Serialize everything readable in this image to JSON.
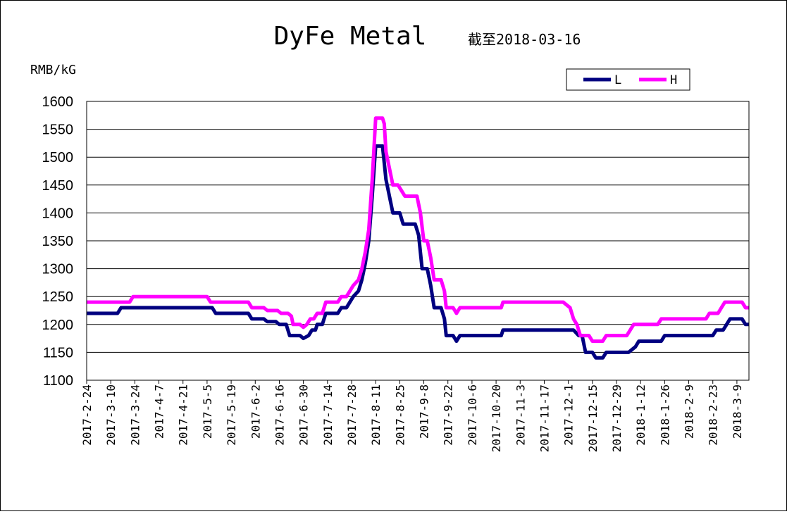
{
  "chart_data": {
    "type": "line",
    "title": "DyFe Metal",
    "subtitle": "截至2018-03-16",
    "ylabel": "RMB/kG",
    "xlabel": "",
    "ylim": [
      1100,
      1600
    ],
    "yticks": [
      1100,
      1150,
      1200,
      1250,
      1300,
      1350,
      1400,
      1450,
      1500,
      1550,
      1600
    ],
    "grid": "horizontal",
    "legend_position": "top-right",
    "x_start": "2017-02-24",
    "x_end": "2018-03-16",
    "xticks": [
      "2017-2-24",
      "2017-3-10",
      "2017-3-24",
      "2017-4-7",
      "2017-4-21",
      "2017-5-5",
      "2017-5-19",
      "2017-6-2",
      "2017-6-16",
      "2017-6-30",
      "2017-7-14",
      "2017-7-28",
      "2017-8-11",
      "2017-8-25",
      "2017-9-8",
      "2017-9-22",
      "2017-10-6",
      "2017-10-20",
      "2017-11-3",
      "2017-11-17",
      "2017-12-1",
      "2017-12-15",
      "2017-12-29",
      "2018-1-12",
      "2018-1-26",
      "2018-2-9",
      "2018-2-23",
      "2018-3-9"
    ],
    "series": [
      {
        "name": "L",
        "color": "#000080",
        "points": [
          [
            "2017-02-24",
            1220
          ],
          [
            "2017-03-14",
            1220
          ],
          [
            "2017-03-16",
            1230
          ],
          [
            "2017-05-08",
            1230
          ],
          [
            "2017-05-10",
            1220
          ],
          [
            "2017-05-29",
            1220
          ],
          [
            "2017-05-31",
            1210
          ],
          [
            "2017-06-07",
            1210
          ],
          [
            "2017-06-09",
            1205
          ],
          [
            "2017-06-14",
            1205
          ],
          [
            "2017-06-16",
            1200
          ],
          [
            "2017-06-20",
            1200
          ],
          [
            "2017-06-22",
            1180
          ],
          [
            "2017-06-28",
            1180
          ],
          [
            "2017-06-30",
            1175
          ],
          [
            "2017-07-03",
            1180
          ],
          [
            "2017-07-05",
            1190
          ],
          [
            "2017-07-07",
            1190
          ],
          [
            "2017-07-08",
            1200
          ],
          [
            "2017-07-11",
            1200
          ],
          [
            "2017-07-13",
            1220
          ],
          [
            "2017-07-20",
            1220
          ],
          [
            "2017-07-22",
            1230
          ],
          [
            "2017-07-25",
            1230
          ],
          [
            "2017-07-27",
            1240
          ],
          [
            "2017-07-29",
            1250
          ],
          [
            "2017-08-01",
            1260
          ],
          [
            "2017-08-03",
            1280
          ],
          [
            "2017-08-05",
            1310
          ],
          [
            "2017-08-07",
            1350
          ],
          [
            "2017-08-09",
            1430
          ],
          [
            "2017-08-11",
            1520
          ],
          [
            "2017-08-15",
            1520
          ],
          [
            "2017-08-17",
            1460
          ],
          [
            "2017-08-19",
            1430
          ],
          [
            "2017-08-21",
            1400
          ],
          [
            "2017-08-25",
            1400
          ],
          [
            "2017-08-27",
            1380
          ],
          [
            "2017-09-03",
            1380
          ],
          [
            "2017-09-05",
            1360
          ],
          [
            "2017-09-07",
            1300
          ],
          [
            "2017-09-10",
            1300
          ],
          [
            "2017-09-12",
            1270
          ],
          [
            "2017-09-14",
            1230
          ],
          [
            "2017-09-18",
            1230
          ],
          [
            "2017-09-20",
            1210
          ],
          [
            "2017-09-21",
            1180
          ],
          [
            "2017-09-25",
            1180
          ],
          [
            "2017-09-27",
            1170
          ],
          [
            "2017-09-29",
            1180
          ],
          [
            "2017-10-23",
            1180
          ],
          [
            "2017-10-24",
            1190
          ],
          [
            "2017-12-04",
            1190
          ],
          [
            "2017-12-07",
            1180
          ],
          [
            "2017-12-09",
            1180
          ],
          [
            "2017-12-11",
            1150
          ],
          [
            "2017-12-15",
            1150
          ],
          [
            "2017-12-17",
            1140
          ],
          [
            "2017-12-21",
            1140
          ],
          [
            "2017-12-23",
            1150
          ],
          [
            "2018-01-05",
            1150
          ],
          [
            "2018-01-09",
            1160
          ],
          [
            "2018-01-11",
            1170
          ],
          [
            "2018-01-24",
            1170
          ],
          [
            "2018-01-26",
            1180
          ],
          [
            "2018-02-23",
            1180
          ],
          [
            "2018-02-25",
            1190
          ],
          [
            "2018-03-01",
            1190
          ],
          [
            "2018-03-03",
            1200
          ],
          [
            "2018-03-05",
            1210
          ],
          [
            "2018-03-12",
            1210
          ],
          [
            "2018-03-14",
            1200
          ],
          [
            "2018-03-16",
            1200
          ]
        ]
      },
      {
        "name": "H",
        "color": "#ff00ff",
        "points": [
          [
            "2017-02-24",
            1240
          ],
          [
            "2017-03-21",
            1240
          ],
          [
            "2017-03-23",
            1250
          ],
          [
            "2017-05-05",
            1250
          ],
          [
            "2017-05-07",
            1240
          ],
          [
            "2017-05-29",
            1240
          ],
          [
            "2017-05-31",
            1230
          ],
          [
            "2017-06-07",
            1230
          ],
          [
            "2017-06-09",
            1225
          ],
          [
            "2017-06-15",
            1225
          ],
          [
            "2017-06-17",
            1220
          ],
          [
            "2017-06-21",
            1220
          ],
          [
            "2017-06-23",
            1215
          ],
          [
            "2017-06-24",
            1200
          ],
          [
            "2017-06-28",
            1200
          ],
          [
            "2017-06-30",
            1195
          ],
          [
            "2017-07-02",
            1200
          ],
          [
            "2017-07-04",
            1210
          ],
          [
            "2017-07-06",
            1210
          ],
          [
            "2017-07-08",
            1220
          ],
          [
            "2017-07-11",
            1220
          ],
          [
            "2017-07-13",
            1240
          ],
          [
            "2017-07-20",
            1240
          ],
          [
            "2017-07-22",
            1250
          ],
          [
            "2017-07-25",
            1250
          ],
          [
            "2017-07-27",
            1260
          ],
          [
            "2017-07-29",
            1270
          ],
          [
            "2017-08-01",
            1280
          ],
          [
            "2017-08-03",
            1300
          ],
          [
            "2017-08-05",
            1330
          ],
          [
            "2017-08-07",
            1370
          ],
          [
            "2017-08-09",
            1460
          ],
          [
            "2017-08-11",
            1570
          ],
          [
            "2017-08-15",
            1570
          ],
          [
            "2017-08-16",
            1560
          ],
          [
            "2017-08-17",
            1510
          ],
          [
            "2017-08-19",
            1480
          ],
          [
            "2017-08-21",
            1450
          ],
          [
            "2017-08-24",
            1450
          ],
          [
            "2017-08-26",
            1440
          ],
          [
            "2017-08-28",
            1430
          ],
          [
            "2017-09-04",
            1430
          ],
          [
            "2017-09-06",
            1400
          ],
          [
            "2017-09-08",
            1350
          ],
          [
            "2017-09-10",
            1350
          ],
          [
            "2017-09-12",
            1320
          ],
          [
            "2017-09-14",
            1280
          ],
          [
            "2017-09-18",
            1280
          ],
          [
            "2017-09-20",
            1260
          ],
          [
            "2017-09-21",
            1230
          ],
          [
            "2017-09-25",
            1230
          ],
          [
            "2017-09-27",
            1220
          ],
          [
            "2017-09-29",
            1230
          ],
          [
            "2017-10-23",
            1230
          ],
          [
            "2017-10-24",
            1240
          ],
          [
            "2017-11-28",
            1240
          ],
          [
            "2017-11-30",
            1235
          ],
          [
            "2017-12-02",
            1230
          ],
          [
            "2017-12-04",
            1210
          ],
          [
            "2017-12-06",
            1200
          ],
          [
            "2017-12-08",
            1180
          ],
          [
            "2017-12-13",
            1180
          ],
          [
            "2017-12-15",
            1170
          ],
          [
            "2017-12-21",
            1170
          ],
          [
            "2017-12-23",
            1180
          ],
          [
            "2018-01-04",
            1180
          ],
          [
            "2018-01-06",
            1190
          ],
          [
            "2018-01-08",
            1200
          ],
          [
            "2018-01-22",
            1200
          ],
          [
            "2018-01-24",
            1210
          ],
          [
            "2018-02-19",
            1210
          ],
          [
            "2018-02-21",
            1220
          ],
          [
            "2018-02-26",
            1220
          ],
          [
            "2018-02-28",
            1230
          ],
          [
            "2018-03-02",
            1240
          ],
          [
            "2018-03-12",
            1240
          ],
          [
            "2018-03-14",
            1230
          ],
          [
            "2018-03-16",
            1230
          ]
        ]
      }
    ]
  }
}
